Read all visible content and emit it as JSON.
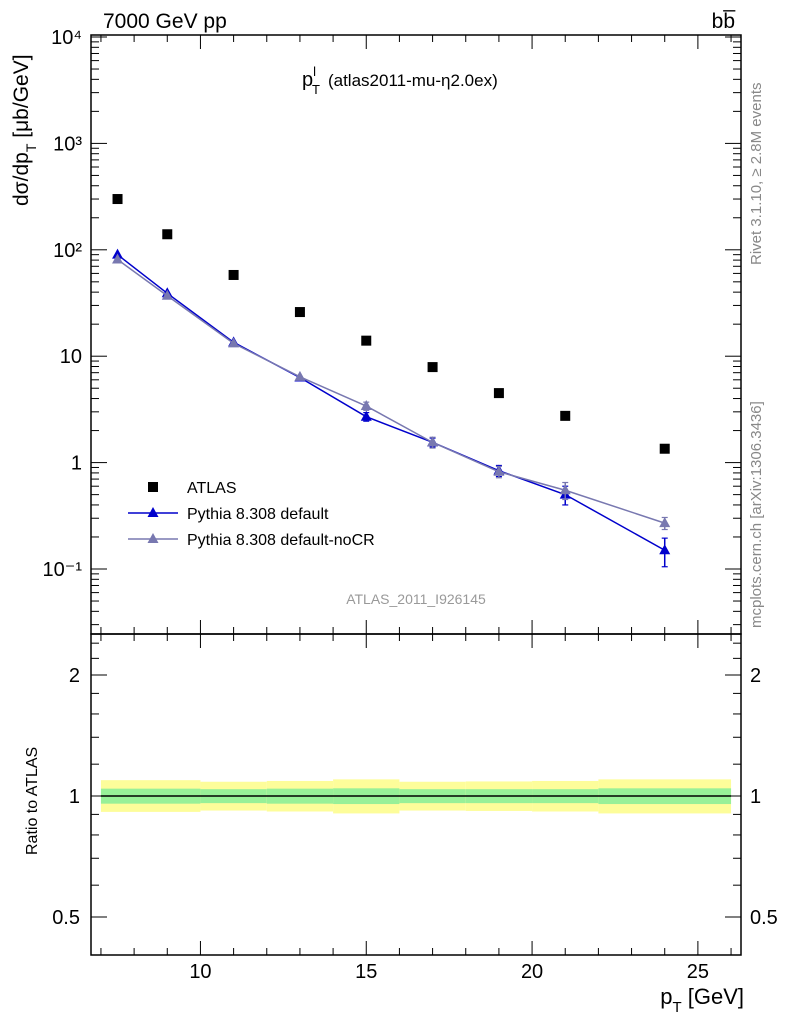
{
  "header": {
    "energy_label": "7000 GeV pp",
    "process_label": "bb̅"
  },
  "plot_title": {
    "main": "p",
    "sup": "l",
    "sub": "T",
    "rest": "(atlas2011-mu-η2.0ex)"
  },
  "ylabel_main": {
    "pre": "dσ/dp",
    "sub": "T",
    "post": " [μb/GeV]"
  },
  "ylabel_ratio": "Ratio to ATLAS",
  "xlabel": {
    "pre": "p",
    "sub": "T",
    "post": " [GeV]"
  },
  "side_text": {
    "rivet": "Rivet 3.1.10, ≥ 2.8M events",
    "mcplots": "mcplots.cern.ch [arXiv:1306.3436]"
  },
  "analysis_label": "ATLAS_2011_I926145",
  "chart_data": [
    {
      "type": "scatter",
      "panel": "main",
      "x_scale": "linear",
      "y_scale": "log",
      "xlim": [
        6.7,
        26.3
      ],
      "ylim": [
        0.025,
        10000
      ],
      "y_tick_labels": [
        "10⁻¹",
        "1",
        "10",
        "10²",
        "10³",
        "10⁴"
      ],
      "legend_position": "bottom-left",
      "series": [
        {
          "name": "ATLAS",
          "color": "#000000",
          "marker": "square",
          "x": [
            7.5,
            9,
            11,
            13,
            15,
            17,
            19,
            21,
            24
          ],
          "y": [
            300,
            140,
            58,
            26,
            14,
            7.9,
            4.5,
            2.75,
            1.35
          ],
          "yerr": [
            0,
            0,
            0,
            0,
            0,
            0,
            0,
            0,
            0
          ]
        },
        {
          "name": "Pythia 8.308 default",
          "color": "#0000cc",
          "marker": "triangle",
          "x": [
            7.5,
            9,
            11,
            13,
            15,
            17,
            19,
            21,
            24
          ],
          "y": [
            90,
            39,
            13.5,
            6.3,
            2.7,
            1.55,
            0.84,
            0.5,
            0.15
          ],
          "yerr": [
            0,
            0,
            0,
            0,
            0.25,
            0.15,
            0.1,
            0.1,
            0.045
          ]
        },
        {
          "name": "Pythia 8.308 default-noCR",
          "color": "#7878b0",
          "marker": "triangle",
          "x": [
            7.5,
            9,
            11,
            13,
            15,
            17,
            19,
            21,
            24
          ],
          "y": [
            81,
            37,
            13.2,
            6.4,
            3.4,
            1.55,
            0.82,
            0.55,
            0.27
          ],
          "yerr": [
            0,
            0,
            0,
            0,
            0.3,
            0.18,
            0.1,
            0.1,
            0.035
          ]
        }
      ]
    },
    {
      "type": "area",
      "panel": "ratio",
      "x_scale": "linear",
      "y_scale": "log",
      "xlim": [
        6.7,
        26.3
      ],
      "ylim": [
        0.35,
        2.4
      ],
      "y_ticks": [
        0.5,
        1,
        2
      ],
      "y_tick_labels": [
        "0.5",
        "1",
        "2"
      ],
      "x_ticks": [
        10,
        15,
        20,
        25
      ],
      "x_tick_labels": [
        "10",
        "15",
        "20",
        "25"
      ],
      "reference_line": 1,
      "bands": {
        "x_edges": [
          7,
          10,
          12,
          14,
          16,
          18,
          20,
          22,
          26
        ],
        "inner_low": [
          0.957,
          0.96,
          0.957,
          0.955,
          0.96,
          0.96,
          0.96,
          0.955
        ],
        "inner_high": [
          1.043,
          1.04,
          1.043,
          1.045,
          1.04,
          1.04,
          1.04,
          1.045
        ],
        "outer_low": [
          0.913,
          0.92,
          0.915,
          0.905,
          0.92,
          0.918,
          0.915,
          0.905
        ],
        "outer_high": [
          1.095,
          1.085,
          1.09,
          1.1,
          1.085,
          1.087,
          1.09,
          1.1
        ],
        "inner_color": "#98f098",
        "outer_color": "#fdfd9a"
      }
    }
  ]
}
